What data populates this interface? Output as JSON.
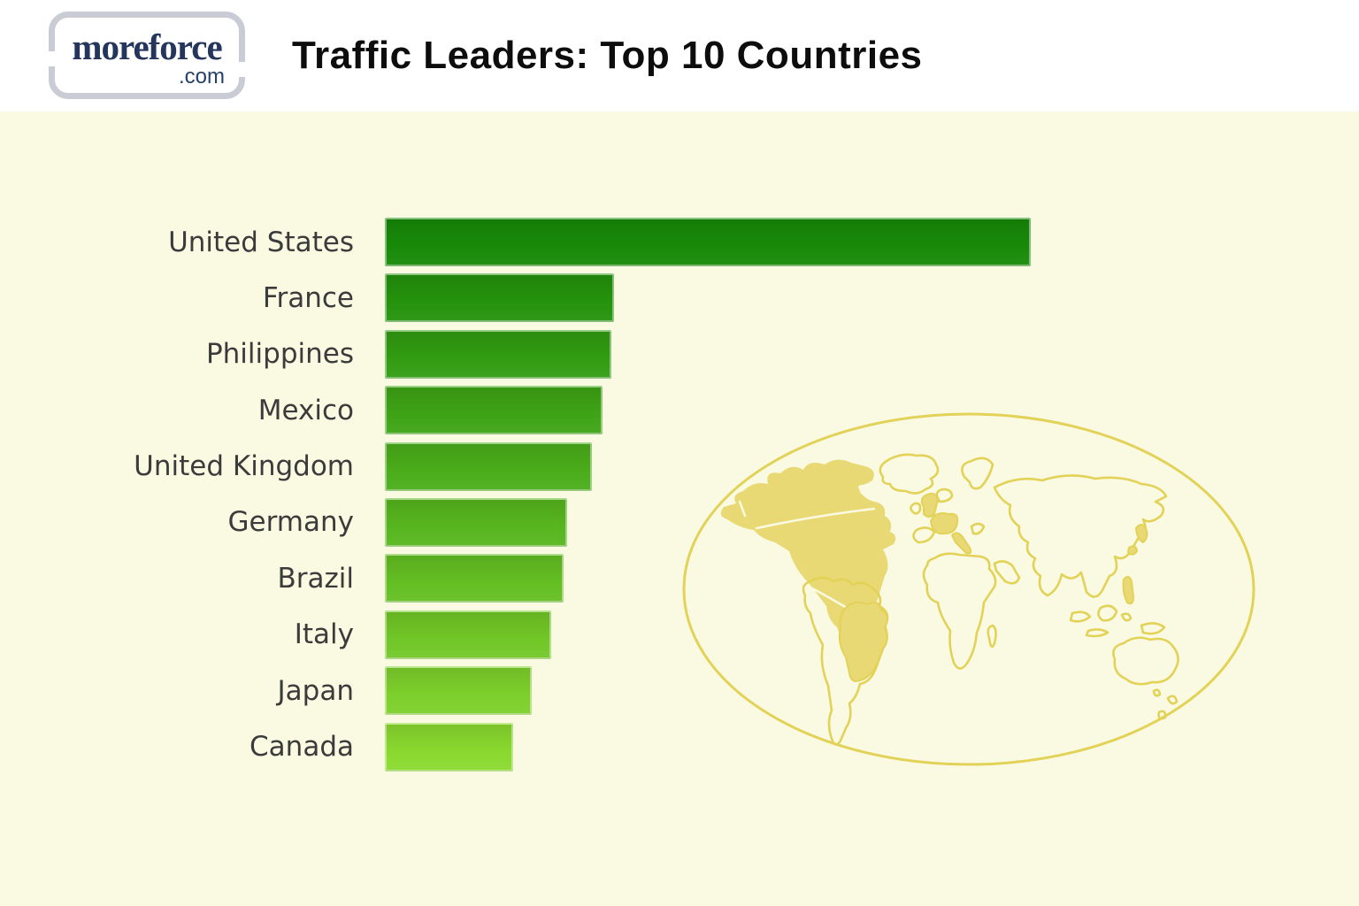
{
  "header": {
    "logo": {
      "brand": "moreforce",
      "tld": ".com"
    },
    "title": "Traffic Leaders: Top 10 Countries"
  },
  "chart_data": {
    "type": "bar",
    "orientation": "horizontal",
    "title": "Traffic Leaders: Top 10 Countries",
    "categories": [
      "United States",
      "France",
      "Philippines",
      "Mexico",
      "United Kingdom",
      "Germany",
      "Brazil",
      "Italy",
      "Japan",
      "Canada"
    ],
    "values": [
      100,
      35.5,
      35.1,
      33.7,
      32.1,
      28.2,
      27.7,
      25.8,
      22.7,
      19.9
    ],
    "units": "relative traffic (United States = 100); no numeric axis shown in source",
    "bar_colors": [
      "#178a08",
      "#24930c",
      "#319c11",
      "#3ea415",
      "#4aad19",
      "#57b61e",
      "#64bf22",
      "#71c726",
      "#7dd02b",
      "#8ad92f"
    ],
    "axes_shown": false,
    "value_labels_shown": false,
    "legend": null,
    "xlim": [
      0,
      100
    ]
  },
  "map": {
    "description": "decorative world map inside an oval frame",
    "outline_color": "#e2d258",
    "land_fill_color": "#e9d974",
    "highlighted_regions": [
      "North America",
      "Brazil",
      "United Kingdom",
      "Western Europe",
      "Italy",
      "Japan",
      "Philippines"
    ]
  },
  "colors": {
    "page_background": "#fafae3",
    "header_background": "#ffffff",
    "title_text": "#0d0d0d",
    "label_text": "#3b3b3b",
    "logo_text": "#24365c",
    "logo_border": "#c9ccd4"
  }
}
